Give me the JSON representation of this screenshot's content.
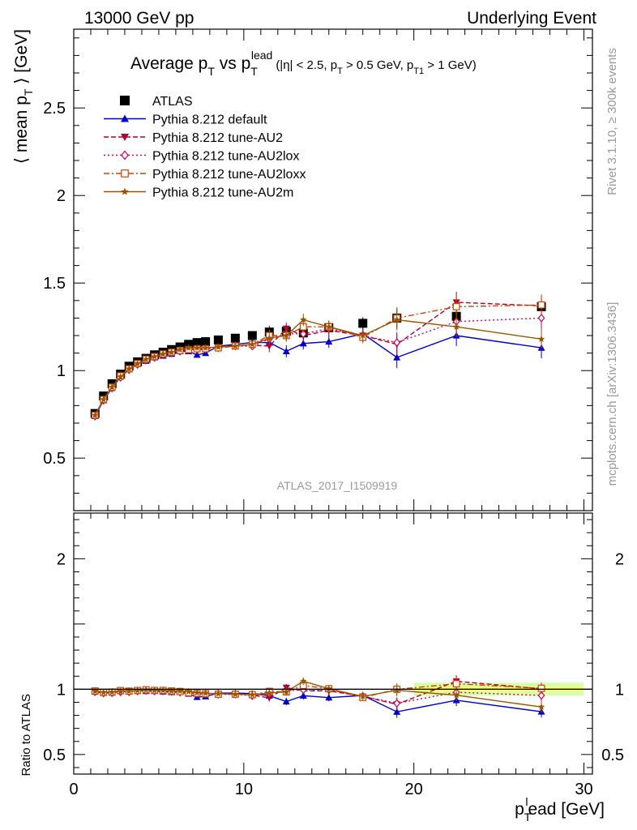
{
  "header": {
    "left": "13000 GeV pp",
    "right": "Underlying Event"
  },
  "side_labels": {
    "rivet": "Rivet 3.1.10, ≥ 300k events",
    "mcplots": "mcplots.cern.ch [arXiv:1306.3436]"
  },
  "chart_data": {
    "type": "scatter",
    "title_parts": {
      "main": "Average p",
      "main_sub": "T",
      "vs": " vs p",
      "vs_sub": "T",
      "vs_sup": "lead",
      "cuts": "(|η| < 2.5, p",
      "cuts_sub1": "T",
      "cuts_mid": " > 0.5 GeV, p",
      "cuts_sub2": "T1",
      "cuts_end": " > 1 GeV)"
    },
    "ylabel_parts": {
      "pre": "⟨ mean p",
      "sub": "T",
      "post": " ⟩ [GeV]"
    },
    "xlabel_parts": {
      "pre": "p",
      "sub": "T",
      "sup": "l",
      "post": "ead [GeV]"
    },
    "ratio_ylabel": "Ratio to ATLAS",
    "watermark": "ATLAS_2017_I1509919",
    "xlim": [
      0,
      30.5
    ],
    "ylim": [
      0.2,
      2.95
    ],
    "ratio_ylim": [
      0.35,
      2.35
    ],
    "x_ticks": [
      0,
      10,
      20,
      30
    ],
    "y_ticks": [
      0.5,
      1,
      1.5,
      2,
      2.5
    ],
    "y_tick_labels": [
      "0.5",
      "1",
      "1.5",
      "2",
      "2.5"
    ],
    "ratio_ticks": [
      0.5,
      1,
      2
    ],
    "ratio_tick_labels": [
      "0.5",
      "1",
      "2"
    ],
    "legend_position": "top-left",
    "x": [
      1.25,
      1.75,
      2.25,
      2.75,
      3.25,
      3.75,
      4.25,
      4.75,
      5.25,
      5.75,
      6.25,
      6.75,
      7.25,
      7.75,
      8.5,
      9.5,
      10.5,
      11.5,
      12.5,
      13.5,
      15,
      17,
      19,
      22.5,
      27.5
    ],
    "series": [
      {
        "name": "ATLAS",
        "color": "#000000",
        "marker": "square-filled",
        "line": "none",
        "values": [
          0.755,
          0.855,
          0.925,
          0.98,
          1.025,
          1.05,
          1.07,
          1.09,
          1.105,
          1.12,
          1.135,
          1.15,
          1.16,
          1.165,
          1.175,
          1.185,
          1.2,
          1.22,
          1.225,
          1.215,
          1.245,
          1.27,
          1.3,
          1.31,
          1.365
        ]
      },
      {
        "name": "Pythia 8.212 default",
        "color": "#0000cc",
        "marker": "triangle-up",
        "line": "solid",
        "values": [
          0.74,
          0.83,
          0.9,
          0.965,
          1.01,
          1.04,
          1.055,
          1.075,
          1.085,
          1.095,
          1.11,
          1.11,
          1.09,
          1.1,
          1.14,
          1.15,
          1.16,
          1.16,
          1.11,
          1.155,
          1.165,
          1.21,
          1.075,
          1.2,
          1.13
        ]
      },
      {
        "name": "Pythia 8.212 tune-AU2",
        "color": "#aa0033",
        "marker": "triangle-down",
        "line": "dashed",
        "values": [
          0.745,
          0.835,
          0.905,
          0.965,
          1.01,
          1.04,
          1.065,
          1.08,
          1.095,
          1.105,
          1.115,
          1.12,
          1.12,
          1.12,
          1.135,
          1.145,
          1.145,
          1.14,
          1.24,
          1.2,
          1.23,
          1.2,
          1.15,
          1.39,
          1.37
        ]
      },
      {
        "name": "Pythia 8.212 tune-AU2lox",
        "color": "#cc0055",
        "marker": "diamond-open",
        "line": "dotted",
        "values": [
          0.74,
          0.83,
          0.9,
          0.96,
          1.005,
          1.035,
          1.06,
          1.075,
          1.09,
          1.1,
          1.11,
          1.12,
          1.12,
          1.125,
          1.13,
          1.14,
          1.14,
          1.18,
          1.21,
          1.21,
          1.24,
          1.2,
          1.16,
          1.28,
          1.3
        ]
      },
      {
        "name": "Pythia 8.212 tune-AU2loxx",
        "color": "#cc4400",
        "marker": "square-open",
        "line": "dashdot",
        "values": [
          0.745,
          0.835,
          0.905,
          0.97,
          1.01,
          1.04,
          1.065,
          1.08,
          1.095,
          1.105,
          1.115,
          1.12,
          1.125,
          1.125,
          1.13,
          1.14,
          1.15,
          1.2,
          1.2,
          1.25,
          1.25,
          1.19,
          1.3,
          1.365,
          1.375
        ]
      },
      {
        "name": "Pythia 8.212 tune-AU2m",
        "color": "#995500",
        "marker": "star",
        "line": "solid",
        "values": [
          0.745,
          0.835,
          0.905,
          0.965,
          1.01,
          1.04,
          1.065,
          1.08,
          1.095,
          1.105,
          1.12,
          1.13,
          1.13,
          1.13,
          1.135,
          1.14,
          1.15,
          1.185,
          1.2,
          1.29,
          1.25,
          1.2,
          1.29,
          1.25,
          1.18
        ]
      }
    ],
    "ratio_band": {
      "x": [
        20,
        30
      ],
      "inner": [
        0.98,
        1.02
      ],
      "outer": [
        0.95,
        1.05
      ],
      "inner_color": "#ffff66",
      "outer_color": "#ccff99"
    }
  }
}
